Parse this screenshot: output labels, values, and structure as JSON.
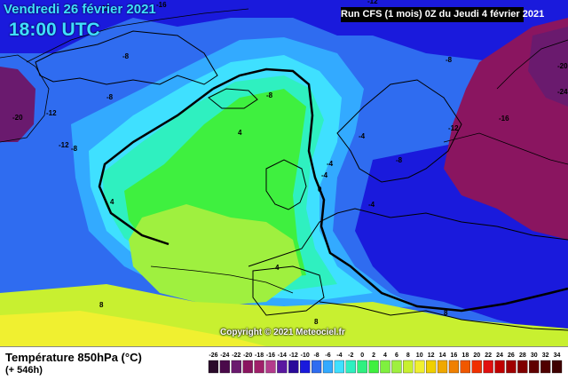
{
  "header": {
    "date": "Vendredi 26 février 2021",
    "time": "18:00 UTC",
    "run_info": "Run CFS (1 mois) 0Z du Jeudi 4 février 2021"
  },
  "footer": {
    "variable_title": "Température 850hPa (°C)",
    "lead_time": "(+ 546h)",
    "copyright": "Copyright © 2021 Meteociel.fr"
  },
  "colors": {
    "deep_blue": "#1a1adc",
    "mid_blue": "#2f6cf0",
    "light_blue": "#33aaff",
    "cyan": "#3fe0ff",
    "aqua": "#2ff0c0",
    "green": "#3ff03f",
    "lime": "#9ff03f",
    "yellow_green": "#c8f030",
    "yellow": "#f0f030",
    "purple": "#6a1a6e",
    "dark_magenta": "#8a1560"
  },
  "contour_labels": [
    "-12",
    "-8",
    "-12",
    "-8",
    "-8",
    "-12",
    "-20",
    "-16",
    "-12",
    "-8",
    "-20",
    "-24",
    "-16",
    "-4",
    "-12",
    "-8",
    "-4",
    "-4",
    "0",
    "-4",
    "4",
    "4",
    "4",
    "8",
    "8",
    "8",
    "-8"
  ],
  "legend": {
    "values": [
      "-26",
      "-24",
      "-22",
      "-20",
      "-18",
      "-16",
      "-14",
      "-12",
      "-10",
      "-8",
      "-6",
      "-4",
      "-2",
      "0",
      "2",
      "4",
      "6",
      "8",
      "10",
      "12",
      "14",
      "16",
      "18",
      "20",
      "22",
      "24",
      "26",
      "28",
      "30",
      "32",
      "34"
    ],
    "colors": [
      "#2a0a2a",
      "#4a0a4a",
      "#6a1a6e",
      "#8a1560",
      "#a0206a",
      "#b43c8c",
      "#5a18a0",
      "#2a0a9a",
      "#1a1adc",
      "#2f6cf0",
      "#33aaff",
      "#3fe0ff",
      "#2ff0c0",
      "#2ff080",
      "#3ff03f",
      "#7ff03f",
      "#9ff03f",
      "#c8f030",
      "#f0f030",
      "#f0d000",
      "#f0a800",
      "#f08000",
      "#f05800",
      "#f03000",
      "#e01010",
      "#c00000",
      "#a00000",
      "#800000",
      "#600000",
      "#500000",
      "#400000"
    ]
  }
}
